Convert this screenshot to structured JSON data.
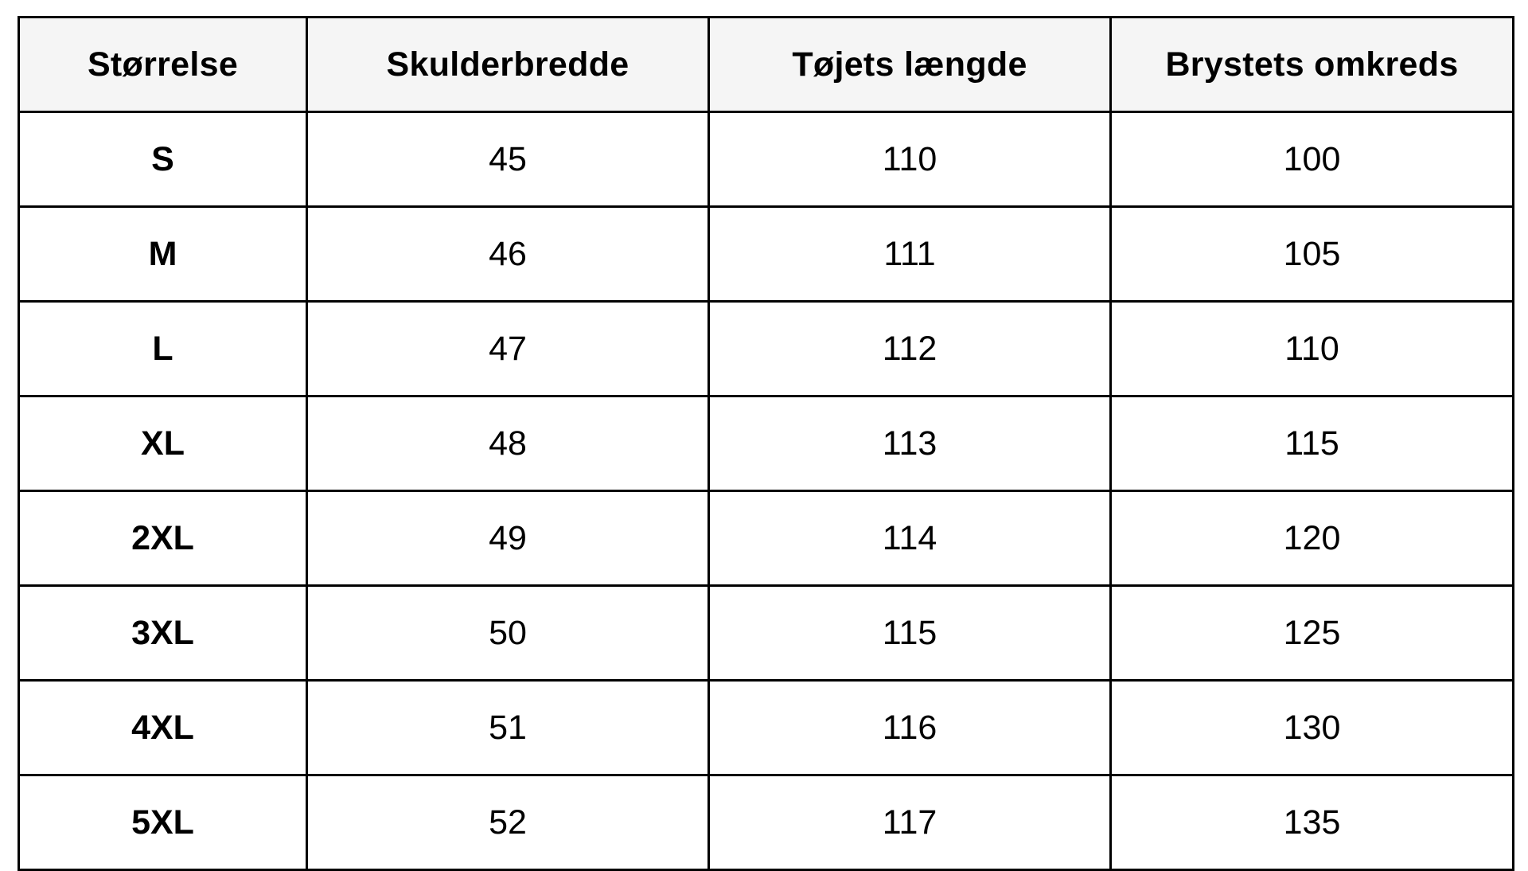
{
  "table": {
    "headers": [
      "Størrelse",
      "Skulderbredde",
      "Tøjets længde",
      "Brystets omkreds"
    ],
    "rows": [
      {
        "size": "S",
        "shoulder": "45",
        "length": "110",
        "chest": "100"
      },
      {
        "size": "M",
        "shoulder": "46",
        "length": "111",
        "chest": "105"
      },
      {
        "size": "L",
        "shoulder": "47",
        "length": "112",
        "chest": "110"
      },
      {
        "size": "XL",
        "shoulder": "48",
        "length": "113",
        "chest": "115"
      },
      {
        "size": "2XL",
        "shoulder": "49",
        "length": "114",
        "chest": "120"
      },
      {
        "size": "3XL",
        "shoulder": "50",
        "length": "115",
        "chest": "125"
      },
      {
        "size": "4XL",
        "shoulder": "51",
        "length": "116",
        "chest": "130"
      },
      {
        "size": "5XL",
        "shoulder": "52",
        "length": "117",
        "chest": "135"
      }
    ]
  },
  "colors": {
    "header_background": "#f5f5f5",
    "border": "#000000",
    "text": "#000000",
    "background": "#ffffff"
  }
}
